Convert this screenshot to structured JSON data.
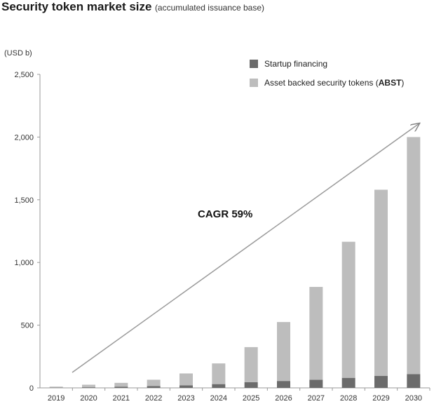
{
  "chart_data": {
    "type": "bar",
    "stacked": true,
    "title": "Security token market size",
    "subtitle": "(accumulated issuance base)",
    "unit": "(USD b)",
    "categories": [
      "2019",
      "2020",
      "2021",
      "2022",
      "2023",
      "2024",
      "2025",
      "2026",
      "2027",
      "2028",
      "2029",
      "2030"
    ],
    "series": [
      {
        "name": "Startup financing",
        "color": "#6b6b6b",
        "values": [
          2,
          5,
          10,
          15,
          20,
          30,
          45,
          55,
          65,
          80,
          95,
          110
        ]
      },
      {
        "name": "Asset backed security tokens (ABST)",
        "name_plain": "Asset backed security tokens (",
        "name_bold": "ABST",
        "name_end": ")",
        "color": "#bdbdbd",
        "values": [
          8,
          20,
          30,
          50,
          95,
          165,
          280,
          470,
          740,
          1085,
          1485,
          1890
        ]
      }
    ],
    "ylim": [
      0,
      2500
    ],
    "yticks": [
      "0",
      "500",
      "1,000",
      "1,500",
      "2,000",
      "2,500"
    ],
    "ytick_values": [
      0,
      500,
      1000,
      1500,
      2000,
      2500
    ],
    "legend_position": "top-right",
    "grid": false,
    "annotation": {
      "text": "CAGR 59%",
      "arrow": true
    }
  }
}
